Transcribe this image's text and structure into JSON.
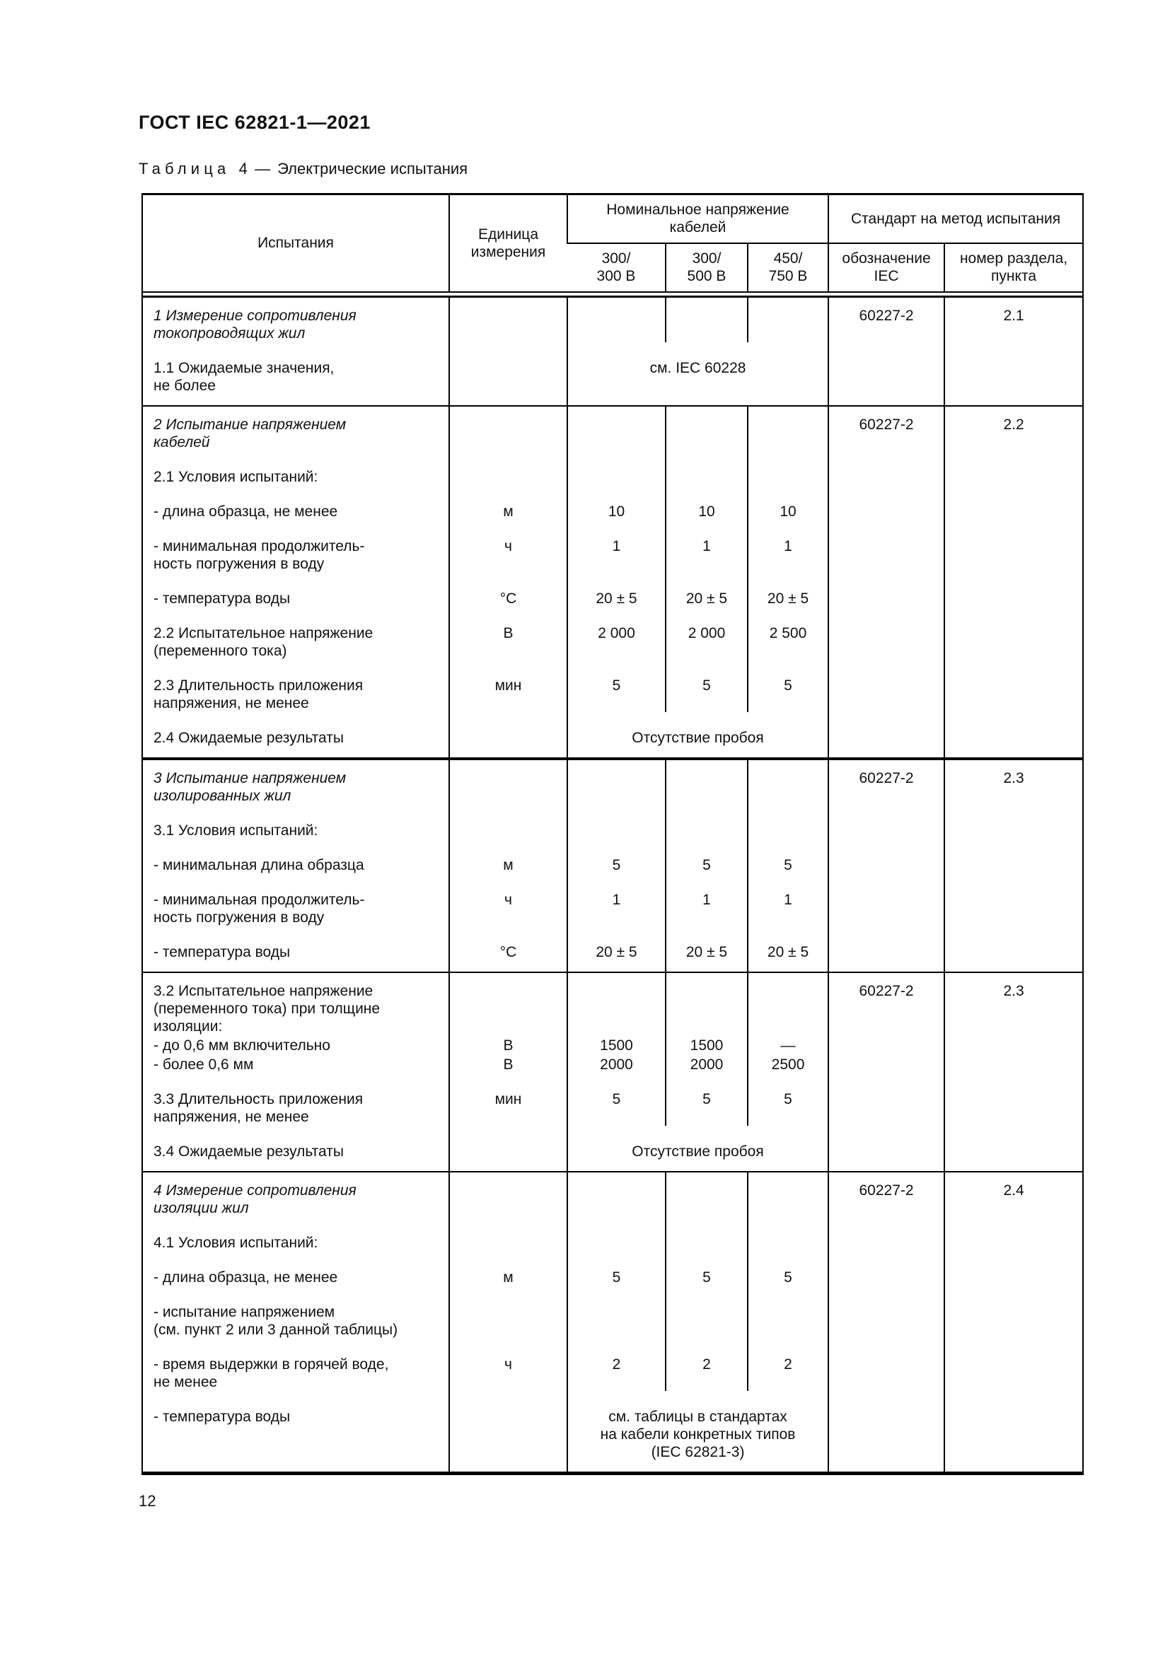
{
  "page": {
    "doc_code": "ГОСТ IEC 62821-1—2021",
    "page_number": "12"
  },
  "table": {
    "caption": {
      "label": "Таблица 4",
      "separator": "—",
      "title": "Электрические испытания"
    },
    "header": {
      "tests": "Испытания",
      "unit": "Единица\nизмерения",
      "voltage_group": "Номинальное напряжение\nкабелей",
      "standard_group": "Стандарт на метод испытания",
      "v300_300": "300/\n300 В",
      "v300_500": "300/\n500 В",
      "v450_750": "450/\n750 В",
      "designation": "обозначение\nIEC",
      "section": "номер раздела,\nпункта"
    },
    "blocks": [
      {
        "rows": [
          {
            "label": "1 Измерение сопротивления\nтокопроводящих жил",
            "em": true,
            "iec": "60227-2",
            "sec": "2.1"
          },
          {
            "label": "1.1 Ожидаемые значения,\nне более",
            "merged": "см. IEC 60228"
          }
        ]
      },
      {
        "rows": [
          {
            "label": "2 Испытание напряжением\nкабелей",
            "em": true,
            "iec": "60227-2",
            "sec": "2.2"
          },
          {
            "label": "2.1 Условия испытаний:"
          },
          {
            "label": "- длина образца, не менее",
            "unit": "м",
            "values": [
              "10",
              "10",
              "10"
            ]
          },
          {
            "label": "- минимальная продолжитель-\nность погружения в воду",
            "unit": "ч",
            "values": [
              "1",
              "1",
              "1"
            ]
          },
          {
            "label": "- температура воды",
            "unit": "°С",
            "values": [
              "20 ± 5",
              "20 ± 5",
              "20 ± 5"
            ]
          },
          {
            "label": "2.2 Испытательное напряжение\n(переменного тока)",
            "unit": "В",
            "values": [
              "2 000",
              "2 000",
              "2 500"
            ]
          },
          {
            "label": "2.3 Длительность приложения\nнапряжения, не менее",
            "unit": "мин",
            "values": [
              "5",
              "5",
              "5"
            ]
          },
          {
            "label": "2.4 Ожидаемые результаты",
            "merged": "Отсутствие пробоя"
          }
        ]
      },
      {
        "rows": [
          {
            "label": "3 Испытание напряжением\nизолированных жил",
            "em": true,
            "iec": "60227-2",
            "sec": "2.3"
          },
          {
            "label": "3.1 Условия испытаний:"
          },
          {
            "label": "- минимальная длина образца",
            "unit": "м",
            "values": [
              "5",
              "5",
              "5"
            ]
          },
          {
            "label": "- минимальная продолжитель-\nность погружения в воду",
            "unit": "ч",
            "values": [
              "1",
              "1",
              "1"
            ]
          },
          {
            "label": "- температура воды",
            "unit": "°С",
            "values": [
              "20 ± 5",
              "20 ± 5",
              "20 ± 5"
            ]
          }
        ]
      },
      {
        "rows": [
          {
            "label": "3.2 Испытательное напряжение\n(переменного тока) при толщине\nизоляции:",
            "iec": "60227-2",
            "sec": "2.3"
          },
          {
            "label": "- до 0,6 мм включительно",
            "unit": "В",
            "values": [
              "1500",
              "1500",
              "—"
            ],
            "tight": true
          },
          {
            "label": "- более 0,6 мм",
            "unit": "В",
            "values": [
              "2000",
              "2000",
              "2500"
            ],
            "tight": true
          },
          {
            "label": "3.3 Длительность приложения\nнапряжения, не менее",
            "unit": "мин",
            "values": [
              "5",
              "5",
              "5"
            ]
          },
          {
            "label": "3.4 Ожидаемые результаты",
            "merged": "Отсутствие пробоя"
          }
        ]
      },
      {
        "rows": [
          {
            "label": "4 Измерение сопротивления\nизоляции жил",
            "em": true,
            "iec": "60227-2",
            "sec": "2.4"
          },
          {
            "label": "4.1 Условия испытаний:"
          },
          {
            "label": "- длина образца, не менее",
            "unit": "м",
            "values": [
              "5",
              "5",
              "5"
            ]
          },
          {
            "label": "- испытание напряжением\n(см. пункт 2 или 3 данной таблицы)"
          },
          {
            "label": "- время выдержки в горячей воде,\nне менее",
            "unit": "ч",
            "values": [
              "2",
              "2",
              "2"
            ]
          },
          {
            "label": "- температура воды",
            "merged": "см. таблицы в стандартах\nна кабели конкретных типов\n(IEC 62821-3)"
          }
        ]
      }
    ]
  }
}
